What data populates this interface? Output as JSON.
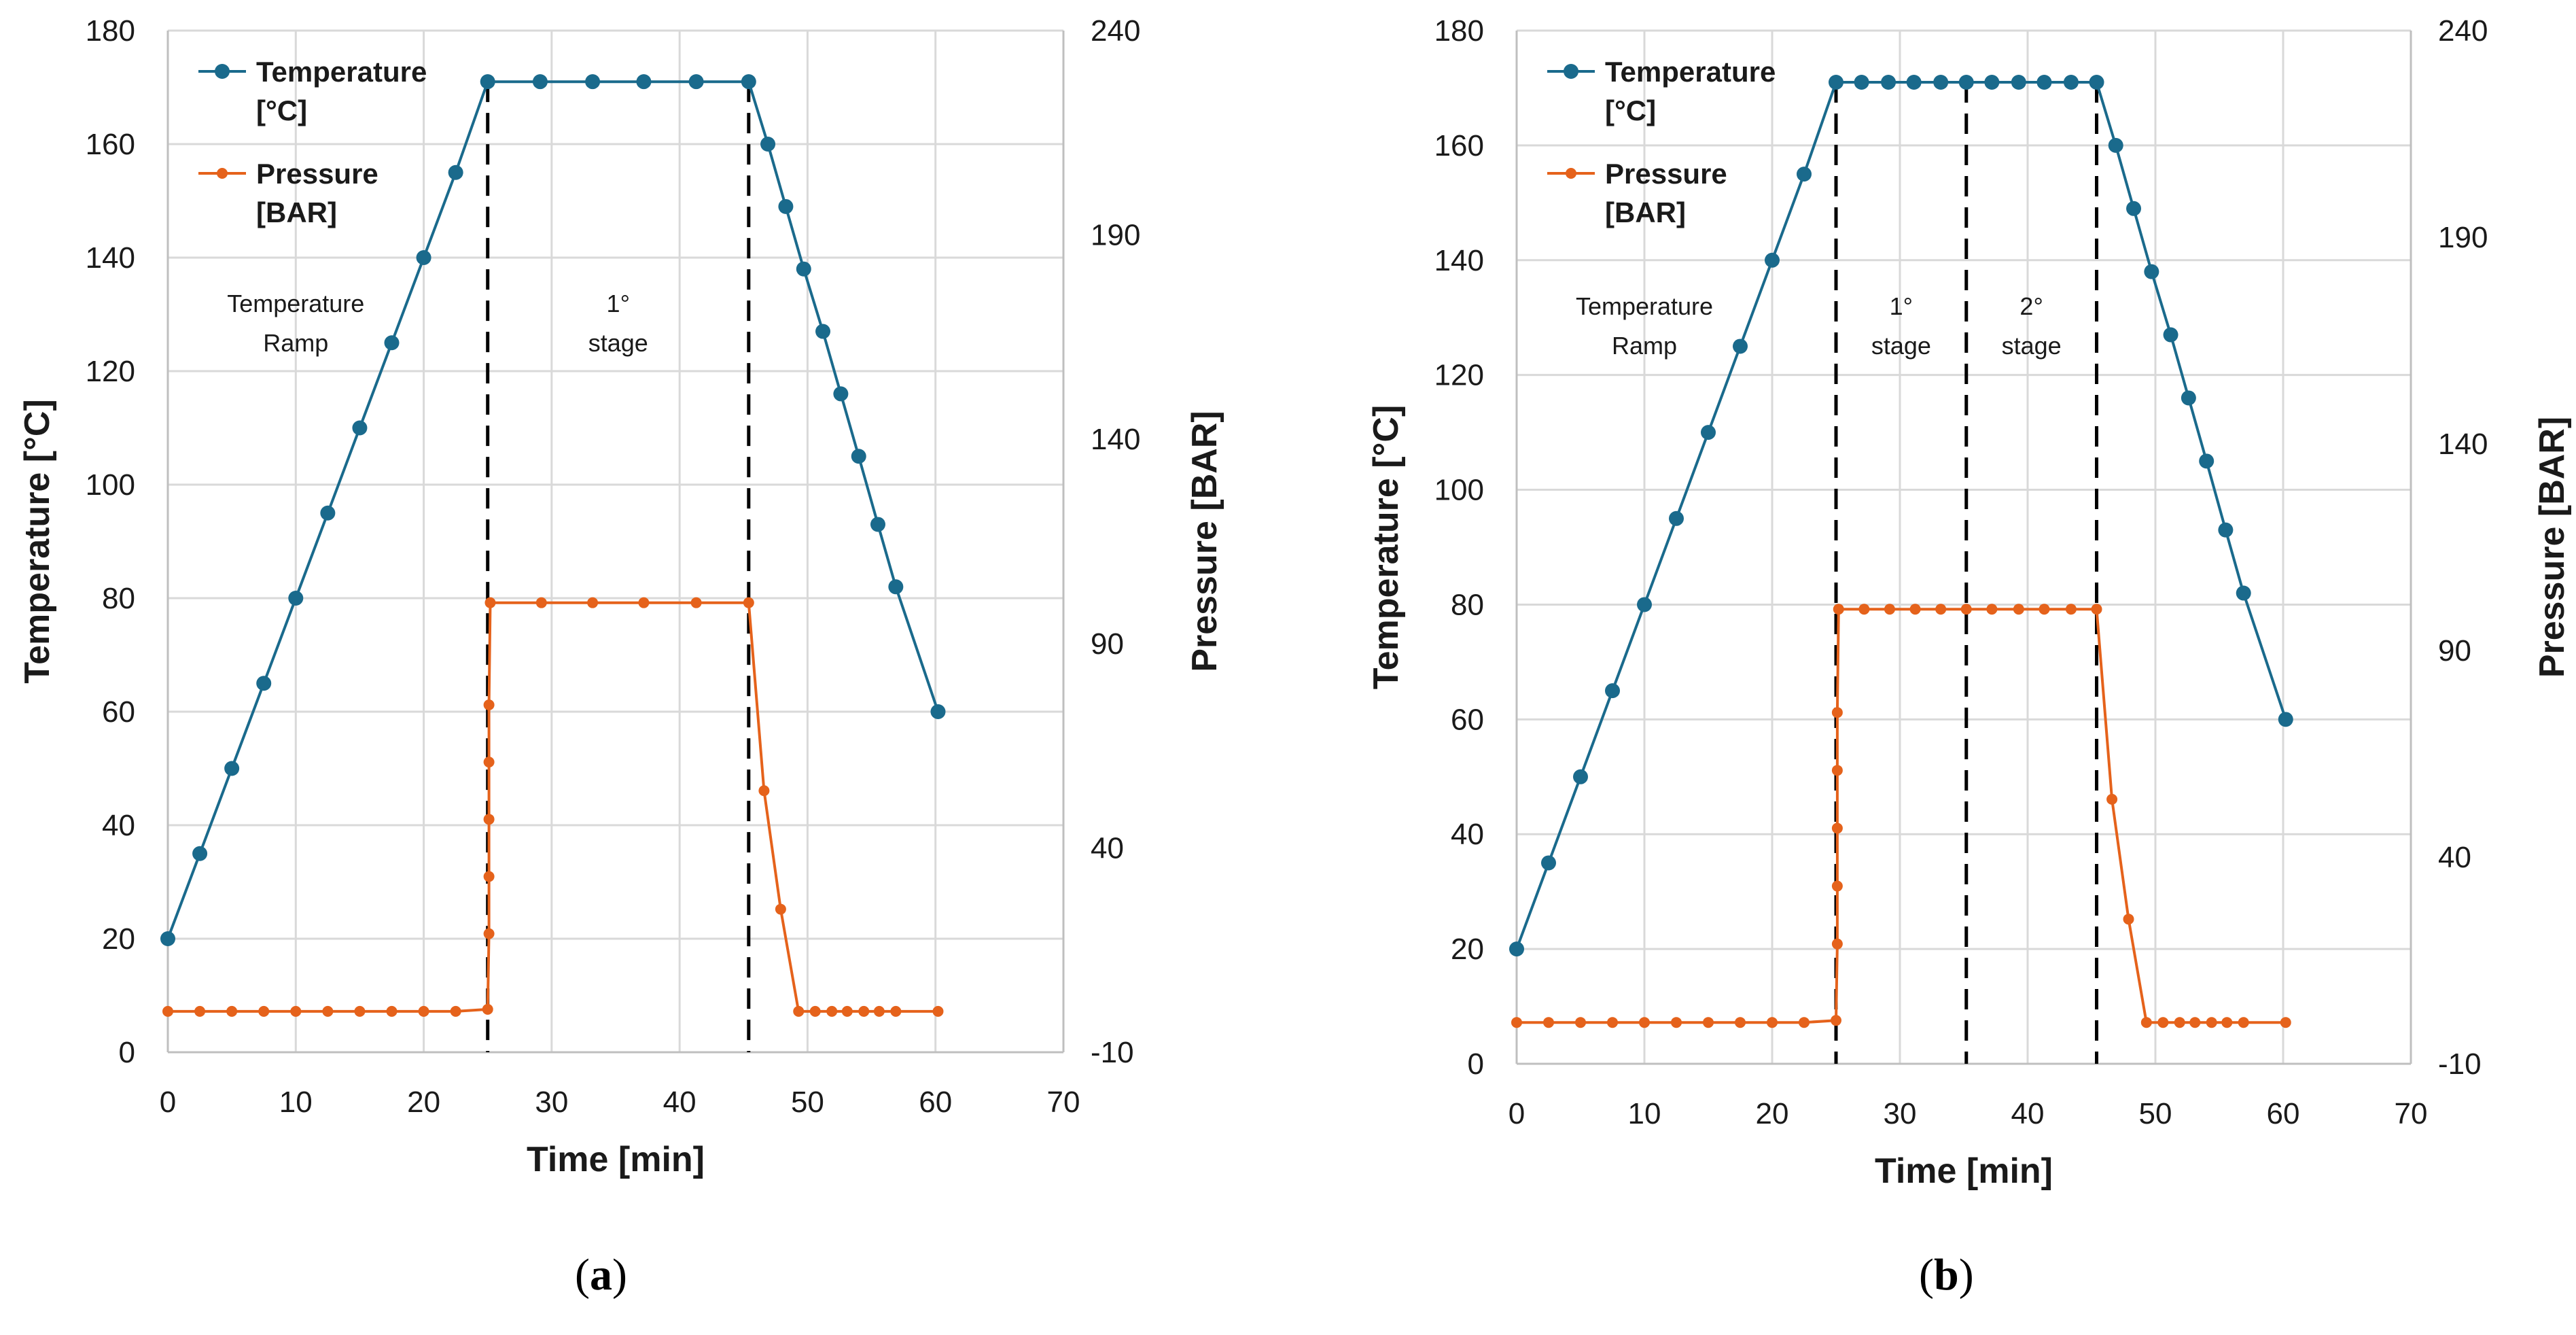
{
  "colors": {
    "temperature": "#1a6a8c",
    "pressure": "#e5621b",
    "grid": "#d9d9d9",
    "axis": "#bfbfbf",
    "text": "#1a1a1a"
  },
  "panels": [
    {
      "id": "a",
      "caption": {
        "open": "(",
        "letter": "a",
        "close": ")"
      },
      "legend": {
        "temperature": [
          "Temperature",
          "[°C]"
        ],
        "pressure": [
          "Pressure",
          "[BAR]"
        ]
      },
      "annotations": [
        {
          "lines": [
            "Temperature",
            "Ramp"
          ],
          "x": 10
        },
        {
          "lines": [
            "1°",
            "stage"
          ],
          "x": 35.2
        }
      ],
      "stage_markers": [
        25,
        45.4
      ]
    },
    {
      "id": "b",
      "caption": {
        "open": "(",
        "letter": "b",
        "close": ")"
      },
      "legend": {
        "temperature": [
          "Temperature",
          "[°C]"
        ],
        "pressure": [
          "Pressure",
          "[BAR]"
        ]
      },
      "annotations": [
        {
          "lines": [
            "Temperature",
            "Ramp"
          ],
          "x": 10
        },
        {
          "lines": [
            "1°",
            "stage"
          ],
          "x": 30.1
        },
        {
          "lines": [
            "2°",
            "stage"
          ],
          "x": 40.3
        }
      ],
      "stage_markers": [
        25,
        35.2,
        45.4
      ]
    }
  ],
  "chart_data": [
    {
      "type": "line",
      "panel": "a",
      "xlabel": "Time [min]",
      "ylabel": "Temperature [°C]",
      "y2label": "Pressure [BAR]",
      "xlim": [
        0,
        70
      ],
      "ylim": [
        0,
        180
      ],
      "y2lim": [
        -10,
        240
      ],
      "xticks": [
        0,
        10,
        20,
        30,
        40,
        50,
        60,
        70
      ],
      "yticks": [
        0,
        20,
        40,
        60,
        80,
        100,
        120,
        140,
        160,
        180
      ],
      "y2ticks": [
        -10,
        40,
        90,
        140,
        190,
        240
      ],
      "series": [
        {
          "name": "Temperature [°C]",
          "axis": "left",
          "x": [
            0,
            2.5,
            5,
            7.5,
            10,
            12.5,
            15,
            17.5,
            20,
            22.5,
            25,
            29.1,
            33.2,
            37.2,
            41.3,
            45.4,
            46.9,
            48.3,
            49.7,
            51.2,
            52.6,
            54,
            55.5,
            56.9,
            60.2
          ],
          "y": [
            20,
            35,
            50,
            65,
            80,
            95,
            110,
            125,
            140,
            155,
            171,
            171,
            171,
            171,
            171,
            171,
            160,
            149,
            138,
            127,
            116,
            105,
            93,
            82,
            60
          ]
        },
        {
          "name": "Pressure [BAR]",
          "axis": "right",
          "x": [
            0,
            2.5,
            5,
            7.5,
            10,
            12.5,
            15,
            17.5,
            20,
            22.5,
            25,
            25.1,
            25.1,
            25.1,
            25.1,
            25.1,
            25.2,
            29.2,
            33.2,
            37.2,
            41.3,
            45.4,
            46.6,
            47.9,
            49.3,
            50.6,
            51.9,
            53.1,
            54.4,
            55.6,
            56.9,
            60.2
          ],
          "y": [
            0,
            0,
            0,
            0,
            0,
            0,
            0,
            0,
            0,
            0,
            0.5,
            19,
            33,
            47,
            61,
            75,
            100,
            100,
            100,
            100,
            100,
            100,
            54,
            25,
            0,
            0,
            0,
            0,
            0,
            0,
            0,
            0
          ]
        }
      ]
    },
    {
      "type": "line",
      "panel": "b",
      "xlabel": "Time [min]",
      "ylabel": "Temperature [°C]",
      "y2label": "Pressure [BAR]",
      "xlim": [
        0,
        70
      ],
      "ylim": [
        0,
        180
      ],
      "y2lim": [
        -10,
        240
      ],
      "xticks": [
        0,
        10,
        20,
        30,
        40,
        50,
        60,
        70
      ],
      "yticks": [
        0,
        20,
        40,
        60,
        80,
        100,
        120,
        140,
        160,
        180
      ],
      "y2ticks": [
        -10,
        40,
        90,
        140,
        190,
        240
      ],
      "series": [
        {
          "name": "Temperature [°C]",
          "axis": "left",
          "x": [
            0,
            2.5,
            5,
            7.5,
            10,
            12.5,
            15,
            17.5,
            20,
            22.5,
            25,
            27,
            29.1,
            31.1,
            33.2,
            35.2,
            37.2,
            39.3,
            41.3,
            43.4,
            45.4,
            46.9,
            48.3,
            49.7,
            51.2,
            52.6,
            54,
            55.5,
            56.9,
            60.2
          ],
          "y": [
            20,
            35,
            50,
            65,
            80,
            95,
            110,
            125,
            140,
            155,
            171,
            171,
            171,
            171,
            171,
            171,
            171,
            171,
            171,
            171,
            171,
            160,
            149,
            138,
            127,
            116,
            105,
            93,
            82,
            60
          ]
        },
        {
          "name": "Pressure [BAR]",
          "axis": "right",
          "x": [
            0,
            2.5,
            5,
            7.5,
            10,
            12.5,
            15,
            17.5,
            20,
            22.5,
            25,
            25.1,
            25.1,
            25.1,
            25.1,
            25.1,
            25.2,
            27.2,
            29.2,
            31.2,
            33.2,
            35.2,
            37.2,
            39.3,
            41.3,
            43.4,
            45.4,
            46.6,
            47.9,
            49.3,
            50.6,
            51.9,
            53.1,
            54.4,
            55.6,
            56.9,
            60.2
          ],
          "y": [
            0,
            0,
            0,
            0,
            0,
            0,
            0,
            0,
            0,
            0,
            0.5,
            19,
            33,
            47,
            61,
            75,
            100,
            100,
            100,
            100,
            100,
            100,
            100,
            100,
            100,
            100,
            100,
            54,
            25,
            0,
            0,
            0,
            0,
            0,
            0,
            0,
            0
          ]
        }
      ]
    }
  ]
}
